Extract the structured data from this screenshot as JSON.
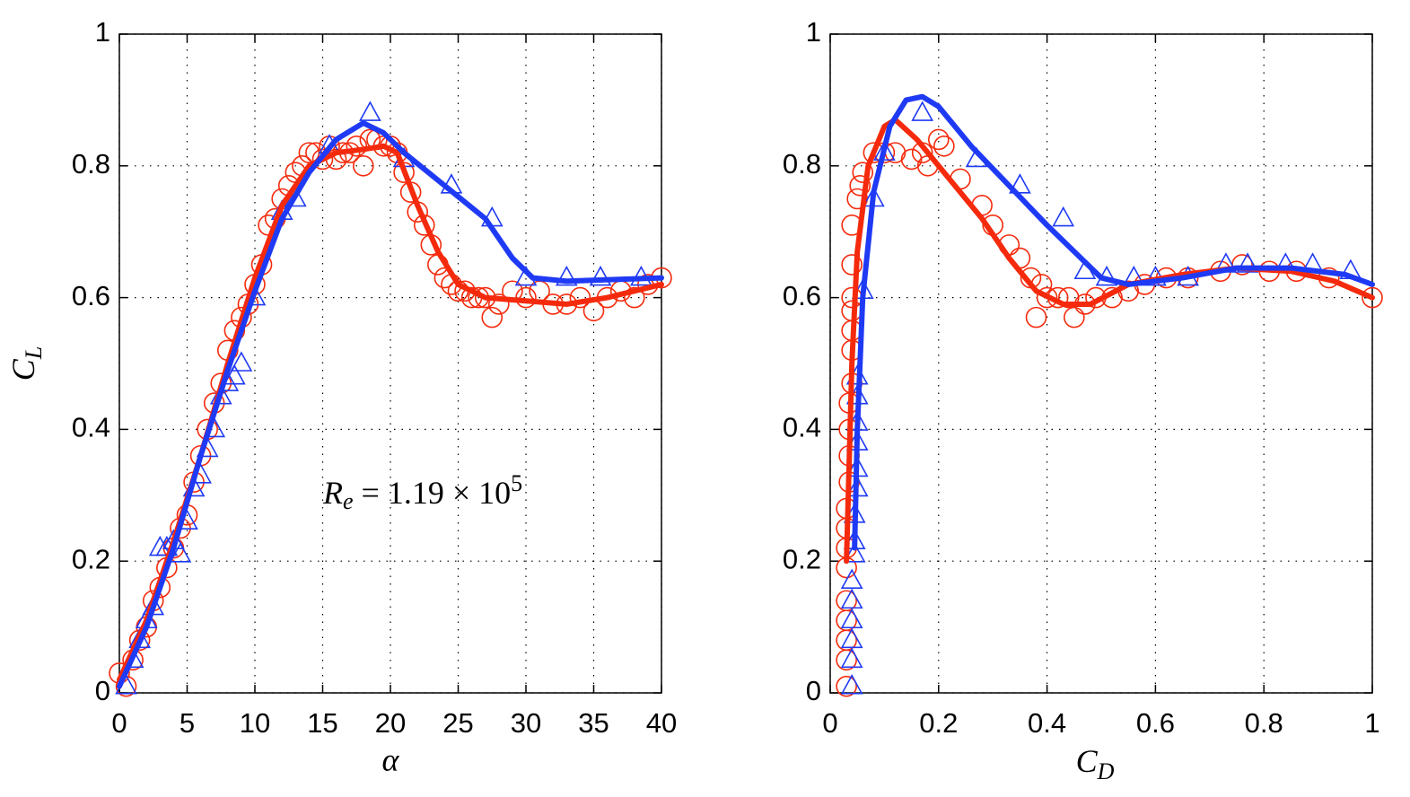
{
  "chart_data": [
    {
      "type": "scatter",
      "x_label": "α",
      "y_label": {
        "text": "C",
        "subscript": "L"
      },
      "annotation": {
        "text": "R",
        "subscript": "e",
        "main": " = 1.19 × 10",
        "superscript": "5"
      },
      "xlim": [
        0,
        40
      ],
      "ylim": [
        0,
        1
      ],
      "xticks": [
        0,
        5,
        10,
        15,
        20,
        25,
        30,
        35,
        40
      ],
      "yticks": [
        0,
        0.2,
        0.4,
        0.6,
        0.8,
        1
      ],
      "grid": true,
      "series": [
        {
          "mode": "markers",
          "marker": "circle",
          "color": "#f52a0c",
          "x": [
            0,
            0.5,
            1,
            1.5,
            2,
            2.5,
            3,
            3.5,
            4,
            4.5,
            5,
            5.5,
            6,
            6.5,
            7,
            7.5,
            8,
            8.5,
            9,
            9.5,
            10,
            10.5,
            11,
            11.5,
            12,
            12.5,
            13,
            13.5,
            14,
            14.5,
            15,
            15.5,
            16,
            16.5,
            17,
            17.5,
            18,
            18.5,
            19,
            19.5,
            20,
            20.5,
            21,
            21.5,
            22,
            22.5,
            23,
            23.5,
            24,
            24.5,
            25,
            25.5,
            26,
            26.5,
            27,
            27.5,
            28,
            29,
            30,
            31,
            32,
            33,
            34,
            35,
            36,
            37,
            38,
            39,
            40
          ],
          "values": [
            0.03,
            0.01,
            0.05,
            0.08,
            0.1,
            0.14,
            0.16,
            0.19,
            0.22,
            0.25,
            0.27,
            0.32,
            0.36,
            0.4,
            0.44,
            0.47,
            0.52,
            0.55,
            0.57,
            0.59,
            0.62,
            0.65,
            0.71,
            0.72,
            0.75,
            0.77,
            0.79,
            0.8,
            0.82,
            0.82,
            0.81,
            0.83,
            0.81,
            0.82,
            0.82,
            0.83,
            0.8,
            0.84,
            0.84,
            0.83,
            0.83,
            0.82,
            0.79,
            0.76,
            0.73,
            0.71,
            0.68,
            0.65,
            0.63,
            0.62,
            0.61,
            0.61,
            0.6,
            0.6,
            0.6,
            0.57,
            0.59,
            0.61,
            0.6,
            0.61,
            0.59,
            0.59,
            0.6,
            0.58,
            0.6,
            0.61,
            0.6,
            0.62,
            0.63
          ]
        },
        {
          "mode": "markers",
          "marker": "triangle",
          "color": "#1f3af5",
          "x": [
            0.5,
            1,
            1.5,
            2,
            2.5,
            3,
            3.5,
            4,
            4.5,
            5,
            5.5,
            6,
            6.5,
            7,
            7.5,
            8,
            8.5,
            9,
            10,
            12,
            13,
            15.5,
            18.5,
            21,
            24.5,
            27.5,
            30,
            33,
            35.5,
            38.5
          ],
          "values": [
            0.01,
            0.05,
            0.08,
            0.11,
            0.13,
            0.22,
            0.22,
            0.23,
            0.21,
            0.26,
            0.31,
            0.33,
            0.37,
            0.4,
            0.45,
            0.47,
            0.48,
            0.5,
            0.6,
            0.73,
            0.75,
            0.83,
            0.88,
            0.81,
            0.77,
            0.72,
            0.63,
            0.63,
            0.63,
            0.63
          ]
        },
        {
          "mode": "line",
          "color": "#f52a0c",
          "x": [
            0,
            2,
            4,
            6,
            8,
            10,
            12,
            14,
            16,
            18,
            19.5,
            20.5,
            22,
            23.5,
            25,
            27,
            30,
            33,
            36,
            40
          ],
          "values": [
            0.02,
            0.11,
            0.23,
            0.36,
            0.5,
            0.63,
            0.74,
            0.8,
            0.82,
            0.825,
            0.83,
            0.82,
            0.74,
            0.67,
            0.62,
            0.6,
            0.595,
            0.59,
            0.6,
            0.62
          ]
        },
        {
          "mode": "line",
          "color": "#1f3af5",
          "x": [
            0,
            2,
            4,
            6,
            8,
            10,
            12,
            14,
            16,
            18,
            19.5,
            21,
            24,
            27,
            29,
            30.5,
            33,
            40
          ],
          "values": [
            0.01,
            0.1,
            0.22,
            0.36,
            0.49,
            0.61,
            0.72,
            0.79,
            0.84,
            0.865,
            0.85,
            0.82,
            0.77,
            0.72,
            0.66,
            0.63,
            0.625,
            0.63
          ]
        }
      ]
    },
    {
      "type": "scatter",
      "x_label": {
        "text": "C",
        "subscript": "D"
      },
      "xlim": [
        0,
        1
      ],
      "ylim": [
        0,
        1
      ],
      "xticks": [
        0,
        0.2,
        0.4,
        0.6,
        0.8,
        1
      ],
      "yticks": [
        0,
        0.2,
        0.4,
        0.6,
        0.8,
        1
      ],
      "grid": true,
      "series": [
        {
          "mode": "markers",
          "marker": "circle",
          "color": "#f52a0c",
          "x": [
            0.03,
            0.03,
            0.03,
            0.03,
            0.03,
            0.03,
            0.03,
            0.03,
            0.03,
            0.035,
            0.035,
            0.035,
            0.035,
            0.04,
            0.04,
            0.04,
            0.04,
            0.04,
            0.04,
            0.04,
            0.05,
            0.055,
            0.06,
            0.08,
            0.1,
            0.12,
            0.15,
            0.17,
            0.18,
            0.2,
            0.21,
            0.24,
            0.28,
            0.3,
            0.33,
            0.35,
            0.37,
            0.39,
            0.4,
            0.38,
            0.42,
            0.44,
            0.45,
            0.47,
            0.49,
            0.52,
            0.55,
            0.58,
            0.62,
            0.66,
            0.72,
            0.76,
            0.81,
            0.86,
            0.92,
            1
          ],
          "values": [
            0.01,
            0.05,
            0.08,
            0.11,
            0.14,
            0.19,
            0.22,
            0.25,
            0.28,
            0.32,
            0.36,
            0.4,
            0.44,
            0.47,
            0.52,
            0.55,
            0.58,
            0.6,
            0.65,
            0.71,
            0.75,
            0.77,
            0.79,
            0.82,
            0.82,
            0.82,
            0.81,
            0.82,
            0.8,
            0.84,
            0.83,
            0.78,
            0.74,
            0.71,
            0.68,
            0.66,
            0.63,
            0.62,
            0.6,
            0.57,
            0.6,
            0.6,
            0.57,
            0.59,
            0.6,
            0.6,
            0.61,
            0.62,
            0.63,
            0.63,
            0.64,
            0.65,
            0.64,
            0.64,
            0.63,
            0.6
          ]
        },
        {
          "mode": "markers",
          "marker": "triangle",
          "color": "#1f3af5",
          "x": [
            0.04,
            0.04,
            0.04,
            0.04,
            0.04,
            0.04,
            0.045,
            0.045,
            0.045,
            0.05,
            0.05,
            0.05,
            0.05,
            0.05,
            0.05,
            0.06,
            0.08,
            0.1,
            0.17,
            0.27,
            0.35,
            0.43,
            0.47,
            0.51,
            0.56,
            0.6,
            0.66,
            0.73,
            0.77,
            0.84,
            0.89,
            0.96
          ],
          "values": [
            0.01,
            0.05,
            0.08,
            0.11,
            0.14,
            0.17,
            0.21,
            0.23,
            0.27,
            0.31,
            0.34,
            0.38,
            0.41,
            0.45,
            0.48,
            0.61,
            0.75,
            0.82,
            0.88,
            0.81,
            0.77,
            0.72,
            0.64,
            0.63,
            0.63,
            0.63,
            0.63,
            0.65,
            0.65,
            0.65,
            0.65,
            0.64
          ]
        },
        {
          "mode": "line",
          "color": "#f52a0c",
          "x": [
            0.03,
            0.04,
            0.05,
            0.07,
            0.1,
            0.12,
            0.16,
            0.22,
            0.28,
            0.33,
            0.38,
            0.43,
            0.48,
            0.55,
            0.65,
            0.75,
            0.85,
            0.93,
            1
          ],
          "values": [
            0.2,
            0.5,
            0.67,
            0.8,
            0.86,
            0.87,
            0.84,
            0.78,
            0.72,
            0.66,
            0.61,
            0.59,
            0.59,
            0.62,
            0.635,
            0.645,
            0.64,
            0.625,
            0.6
          ]
        },
        {
          "mode": "line",
          "color": "#1f3af5",
          "x": [
            0.045,
            0.05,
            0.06,
            0.08,
            0.11,
            0.14,
            0.17,
            0.2,
            0.26,
            0.33,
            0.4,
            0.45,
            0.5,
            0.55,
            0.65,
            0.75,
            0.85,
            0.95,
            1
          ],
          "values": [
            0.22,
            0.4,
            0.6,
            0.76,
            0.86,
            0.9,
            0.905,
            0.89,
            0.83,
            0.77,
            0.71,
            0.67,
            0.63,
            0.62,
            0.63,
            0.645,
            0.645,
            0.635,
            0.62
          ]
        }
      ]
    }
  ]
}
